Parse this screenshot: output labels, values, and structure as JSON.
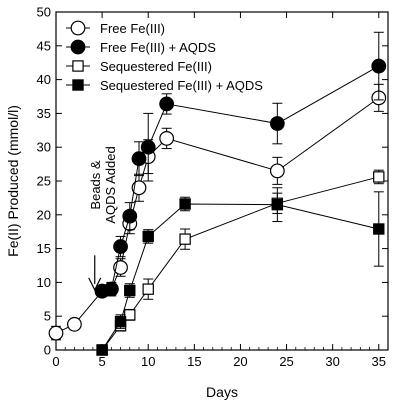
{
  "chart_data": {
    "type": "scatter",
    "xlabel": "Days",
    "ylabel": "Fe(II) Produced (mmol/l)",
    "xlim": [
      0,
      36
    ],
    "ylim": [
      0,
      50
    ],
    "xticks": [
      0,
      5,
      10,
      15,
      20,
      25,
      30,
      35
    ],
    "yticks": [
      0,
      5,
      10,
      15,
      20,
      25,
      30,
      35,
      40,
      45,
      50
    ],
    "legend_position": "top-left",
    "annotation": {
      "lines": [
        "Beads &",
        "AQDS Added"
      ],
      "arrow_x": 4.2,
      "arrow_y_from": 14,
      "arrow_y_to": 8.6
    },
    "series": [
      {
        "name": "Free Fe(III)",
        "marker": "circle-open",
        "x": [
          0,
          2,
          5,
          6,
          7,
          8,
          9,
          10,
          12,
          24,
          35
        ],
        "y": [
          2.5,
          3.8,
          8.7,
          9.0,
          12.2,
          18.7,
          24.0,
          28.6,
          31.3,
          26.5,
          37.3
        ],
        "err": [
          1.0,
          0.5,
          0.5,
          1.0,
          1.3,
          1.5,
          2.0,
          2.5,
          1.5,
          2.0,
          2.0
        ]
      },
      {
        "name": "Free Fe(III) + AQDS",
        "marker": "circle-filled",
        "x": [
          5,
          6,
          7,
          8,
          9,
          10,
          12,
          24,
          35
        ],
        "y": [
          8.7,
          9.0,
          15.3,
          19.8,
          28.3,
          30.0,
          36.4,
          33.5,
          42.0
        ],
        "err": [
          0.5,
          0.8,
          1.5,
          2.0,
          2.5,
          5.0,
          1.5,
          3.0,
          5.0
        ]
      },
      {
        "name": "Sequestered Fe(III)",
        "marker": "square-open",
        "x": [
          5,
          7,
          8,
          10,
          14,
          24,
          35
        ],
        "y": [
          0.0,
          3.6,
          5.2,
          9.0,
          16.4,
          21.7,
          25.6
        ],
        "err": [
          0.3,
          0.8,
          0.8,
          1.5,
          1.5,
          1.5,
          1.0
        ]
      },
      {
        "name": "Sequestered Fe(III) + AQDS",
        "marker": "square-filled",
        "x": [
          5,
          7,
          8,
          10,
          14,
          24,
          35
        ],
        "y": [
          0.0,
          4.2,
          8.8,
          16.8,
          21.6,
          21.5,
          17.9
        ],
        "err": [
          0.3,
          1.0,
          1.0,
          1.0,
          1.0,
          2.5,
          5.5
        ]
      }
    ]
  }
}
